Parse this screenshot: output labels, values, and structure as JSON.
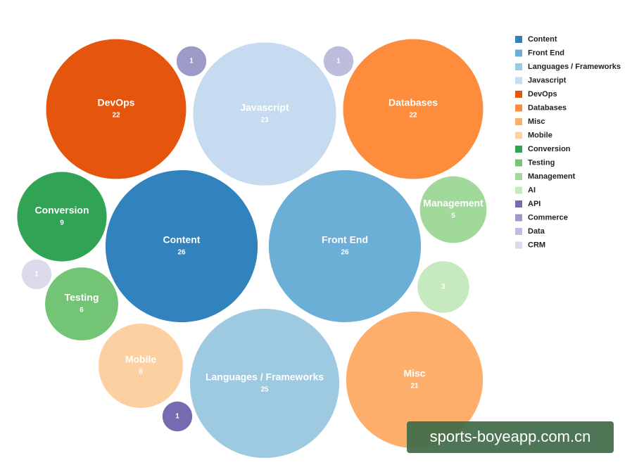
{
  "chart_data": {
    "type": "bubble",
    "categories": [
      "Content",
      "Front End",
      "Languages / Frameworks",
      "Javascript",
      "DevOps",
      "Databases",
      "Misc",
      "Mobile",
      "Conversion",
      "Testing",
      "Management",
      "AI",
      "API",
      "Commerce",
      "Data",
      "CRM"
    ],
    "values": [
      26,
      26,
      25,
      23,
      22,
      22,
      21,
      8,
      9,
      6,
      5,
      3,
      1,
      1,
      1,
      1
    ],
    "colors": [
      "#3182bd",
      "#6baed6",
      "#9ecae1",
      "#c6dbef",
      "#e6550d",
      "#fd8d3c",
      "#fdae6b",
      "#fdd0a2",
      "#31a354",
      "#74c476",
      "#a1d99b",
      "#c7e9c0",
      "#756bb1",
      "#9e9ac8",
      "#bcbddc",
      "#dadaeb"
    ],
    "legend": "top-right"
  },
  "watermark": "sports-boyeapp.com.cn"
}
